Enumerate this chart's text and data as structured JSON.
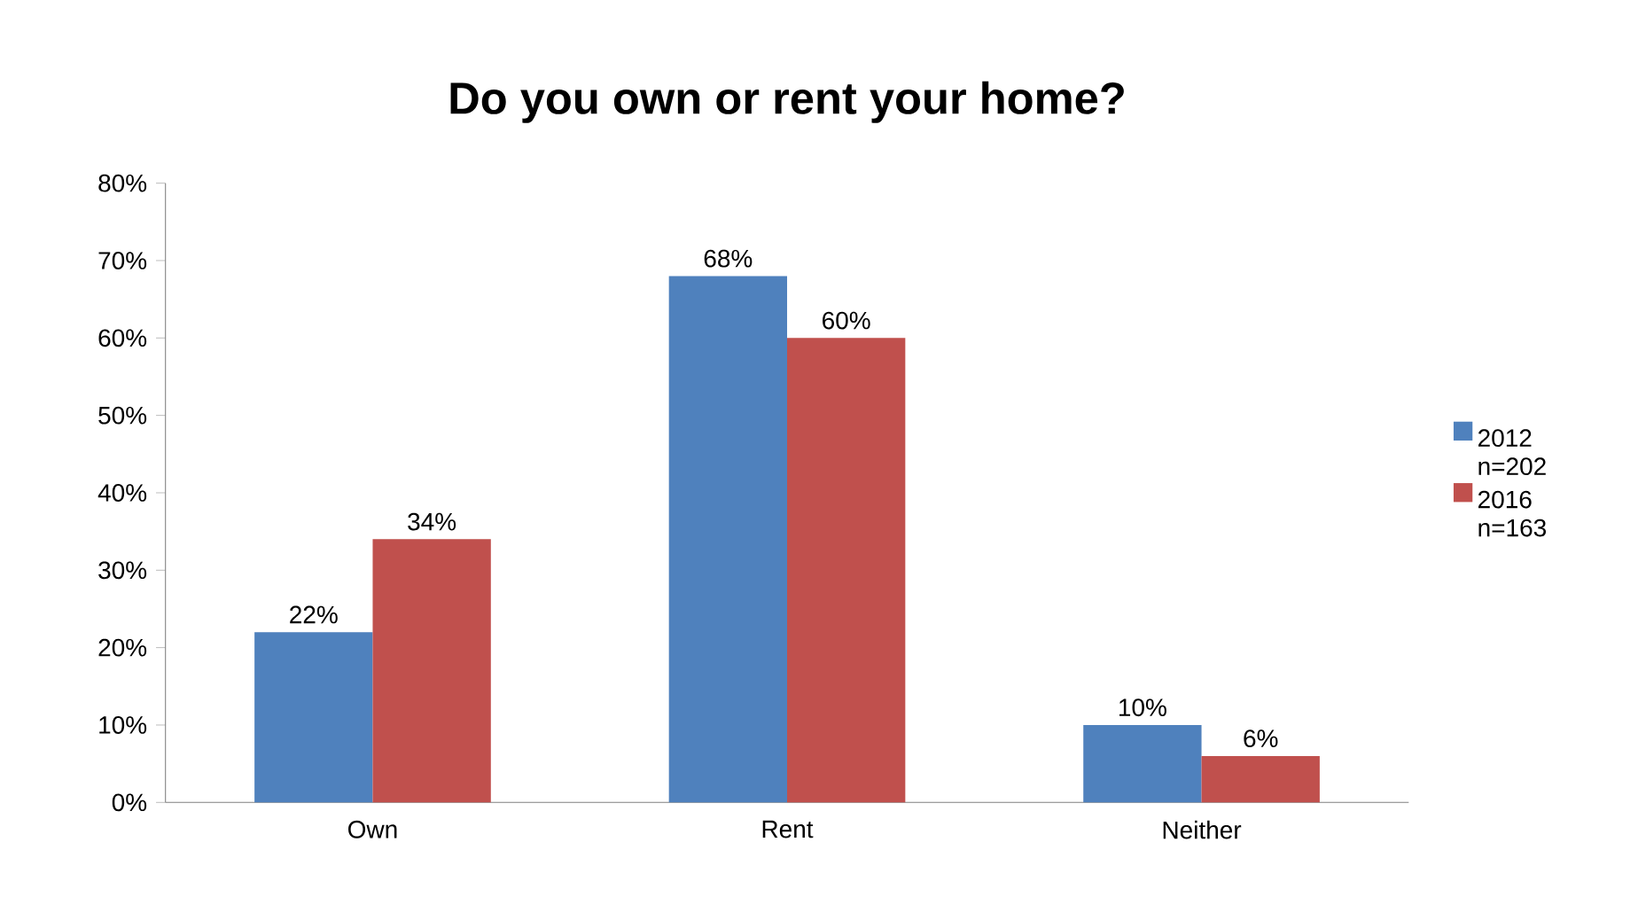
{
  "chart_data": {
    "type": "bar",
    "title": "Do you own or rent your home?",
    "categories": [
      "Own",
      "Rent",
      "Neither"
    ],
    "series": [
      {
        "name": "2012 n=202",
        "color": "#4f81bd",
        "values": [
          22,
          68,
          10
        ],
        "value_labels": [
          "22%",
          "68%",
          "10%"
        ]
      },
      {
        "name": "2016 n=163",
        "color": "#c0504d",
        "values": [
          34,
          60,
          6
        ],
        "value_labels": [
          "34%",
          "60%",
          "6%"
        ]
      }
    ],
    "ylim": [
      0,
      80
    ],
    "yticks": [
      {
        "value": 0,
        "label": "0%"
      },
      {
        "value": 10,
        "label": "10%"
      },
      {
        "value": 20,
        "label": "20%"
      },
      {
        "value": 30,
        "label": "30%"
      },
      {
        "value": 40,
        "label": "40%"
      },
      {
        "value": 50,
        "label": "50%"
      },
      {
        "value": 60,
        "label": "60%"
      },
      {
        "value": 70,
        "label": "70%"
      },
      {
        "value": 80,
        "label": "80%"
      }
    ],
    "grid": false,
    "legend": "right"
  }
}
